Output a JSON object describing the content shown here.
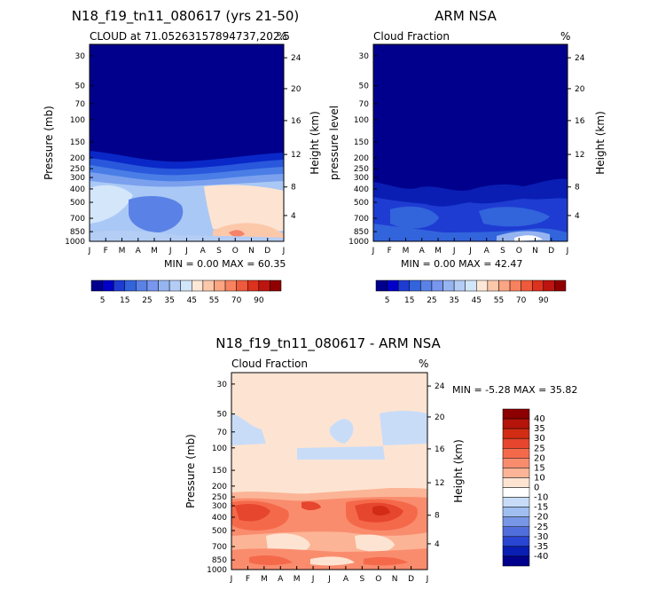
{
  "chart_data": [
    {
      "type": "heatmap",
      "title": "N18_f19_tn11_080617 (yrs 21-50)",
      "subtitle": "CLOUD at 71.05263157894737,202.5",
      "units": "%",
      "ylabel": "Pressure (mb)",
      "ylabel_right": "Height (km)",
      "months": [
        "J",
        "F",
        "M",
        "A",
        "M",
        "J",
        "J",
        "A",
        "S",
        "O",
        "N",
        "D",
        "J"
      ],
      "pressure_ticks": [
        "30",
        "50",
        "70",
        "100",
        "150",
        "200",
        "250",
        "300",
        "400",
        "500",
        "700",
        "850",
        "1000"
      ],
      "height_ticks": [
        "24",
        "20",
        "16",
        "12",
        "8",
        "4"
      ],
      "stats": "MIN =    0.00  MAX =   60.35",
      "min": 0.0,
      "max": 60.35,
      "colorbar_labels": [
        "5",
        "15",
        "25",
        "35",
        "45",
        "55",
        "70",
        "90"
      ],
      "colorbar_levels": [
        0,
        5,
        10,
        15,
        20,
        25,
        30,
        35,
        40,
        45,
        50,
        55,
        60,
        70,
        80,
        90,
        100
      ],
      "colorbar_colors": [
        "#00008c",
        "#0000c8",
        "#1e3cd2",
        "#3264dc",
        "#5a82e6",
        "#7896ee",
        "#96b4f0",
        "#b4cdf5",
        "#d2e6fa",
        "#fde8d8",
        "#fcc8aa",
        "#fca582",
        "#f8825f",
        "#ee5a3c",
        "#dc321e",
        "#be140f",
        "#900000"
      ]
    },
    {
      "type": "heatmap",
      "title": "ARM NSA",
      "subtitle": "Cloud Fraction",
      "units": "%",
      "ylabel": "pressure level",
      "ylabel_right": "Height (km)",
      "months": [
        "J",
        "F",
        "M",
        "A",
        "M",
        "J",
        "J",
        "A",
        "S",
        "O",
        "N",
        "D",
        "J"
      ],
      "pressure_ticks": [
        "30",
        "50",
        "70",
        "100",
        "150",
        "200",
        "250",
        "300",
        "400",
        "500",
        "700",
        "850",
        "1000"
      ],
      "height_ticks": [
        "24",
        "20",
        "16",
        "12",
        "8",
        "4"
      ],
      "stats": "MIN =    0.00  MAX =   42.47",
      "min": 0.0,
      "max": 42.47,
      "colorbar_labels": [
        "5",
        "15",
        "25",
        "35",
        "45",
        "55",
        "70",
        "90"
      ]
    },
    {
      "type": "heatmap",
      "title": "N18_f19_tn11_080617 - ARM NSA",
      "subtitle": "Cloud Fraction",
      "units": "%",
      "ylabel": "Pressure (mb)",
      "ylabel_right": "Height (km)",
      "months": [
        "J",
        "F",
        "M",
        "A",
        "M",
        "J",
        "J",
        "A",
        "S",
        "O",
        "N",
        "D",
        "J"
      ],
      "pressure_ticks": [
        "30",
        "50",
        "70",
        "100",
        "150",
        "200",
        "250",
        "300",
        "400",
        "500",
        "700",
        "850",
        "1000"
      ],
      "height_ticks": [
        "24",
        "20",
        "16",
        "12",
        "8",
        "4"
      ],
      "stats": "MIN =   -5.28  MAX =   35.82",
      "min": -5.28,
      "max": 35.82,
      "colorbar_labels": [
        "40",
        "35",
        "30",
        "25",
        "20",
        "15",
        "10",
        "0",
        "-10",
        "-15",
        "-20",
        "-25",
        "-30",
        "-35",
        "-40"
      ],
      "colorbar_colors": [
        "#8c0000",
        "#b4140a",
        "#d22d14",
        "#e6462d",
        "#f5694b",
        "#fa8c6e",
        "#fcb496",
        "#fde4d2",
        "#ffffff",
        "#c8dcf8",
        "#a0bef0",
        "#7896e6",
        "#506edc",
        "#2846d2",
        "#0a1eb4",
        "#00008c"
      ]
    }
  ]
}
